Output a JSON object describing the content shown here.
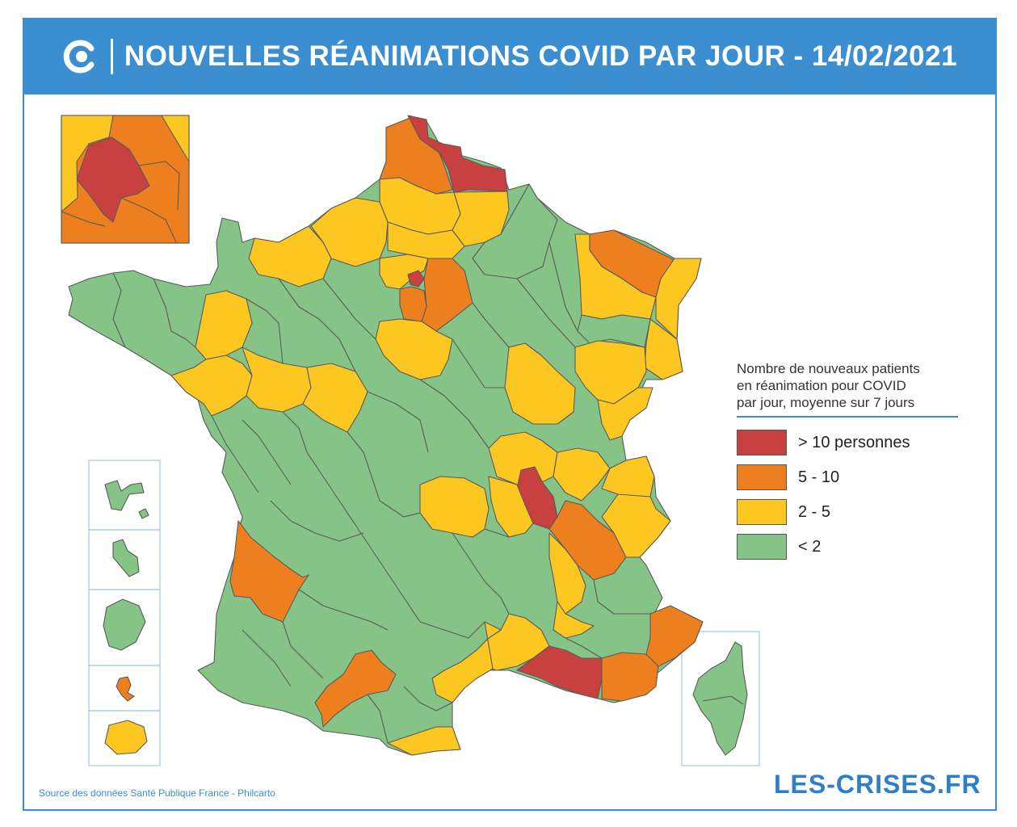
{
  "header": {
    "title": "NOUVELLES RÉANIMATIONS COVID PAR JOUR - 14/02/2021"
  },
  "colors": {
    "brand_blue": "#3b8ed0",
    "red": "#c94040",
    "orange": "#ee7f1e",
    "yellow": "#fdc722",
    "green": "#85c387"
  },
  "legend": {
    "title": "Nombre de nouveaux patients en réanimation pour COVID par jour, moyenne sur 7 jours",
    "title_lines": [
      "Nombre de nouveaux patients",
      "en réanimation pour COVID",
      "par jour, moyenne sur 7 jours"
    ],
    "items": [
      {
        "label": "> 10 personnes",
        "color": "#c94040"
      },
      {
        "label": "5 - 10",
        "color": "#ee7f1e"
      },
      {
        "label": "2 - 5",
        "color": "#fdc722"
      },
      {
        "label": "< 2",
        "color": "#85c387"
      }
    ]
  },
  "footer": {
    "source": "Source des données Santé Publique France - Philcarto",
    "brand": "LES-CRISES.FR"
  }
}
